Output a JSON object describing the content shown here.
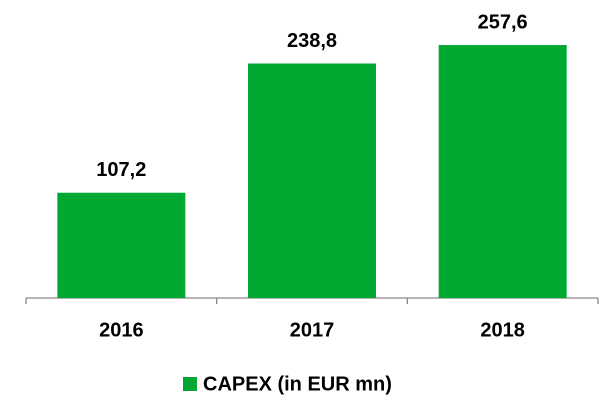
{
  "chart_data": {
    "type": "bar",
    "categories": [
      "2016",
      "2017",
      "2018"
    ],
    "series": [
      {
        "name": "CAPEX (in EUR mn)",
        "color": "#00a832",
        "values": [
          107.2,
          238.8,
          257.6
        ],
        "value_labels": [
          "107,2",
          "238,8",
          "257,6"
        ]
      }
    ]
  }
}
